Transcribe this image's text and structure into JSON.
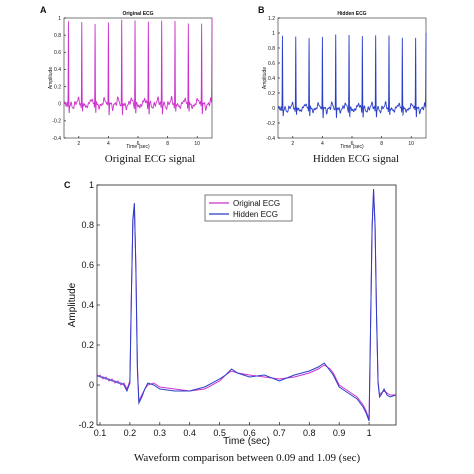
{
  "panel_labels": [
    "A",
    "B",
    "C"
  ],
  "captions": {
    "a": "Original ECG signal",
    "b": "Hidden ECG signal",
    "c": "Waveform comparison between 0.09 and 1.09 (sec)"
  },
  "colors": {
    "original": "#cc33cc",
    "hidden": "#2a3fc8"
  },
  "chart_data": [
    {
      "type": "line",
      "title": "Original ECG",
      "xlabel": "Time (sec)",
      "ylabel": "Amplitude",
      "xlim": [
        1,
        11
      ],
      "ylim": [
        -0.4,
        1.0
      ],
      "xticks": [
        "2",
        "4",
        "6",
        "8",
        "10"
      ],
      "yticks": [
        "-0.4",
        "-0.2",
        "0",
        "0.2",
        "0.4",
        "0.6",
        "0.8",
        "1"
      ],
      "grid": false,
      "series": [
        {
          "color": "#cc33cc",
          "peak_times": [
            1.3,
            2.2,
            3.1,
            4.0,
            4.9,
            5.8,
            6.7,
            7.6,
            8.5,
            9.4,
            10.3,
            11.0
          ],
          "peak_amplitude": 0.96,
          "baseline": 0.0
        }
      ]
    },
    {
      "type": "line",
      "title": "Hidden ECG",
      "xlabel": "Time (sec)",
      "ylabel": "Amplitude",
      "xlim": [
        1,
        11
      ],
      "ylim": [
        -0.4,
        1.2
      ],
      "xticks": [
        "2",
        "4",
        "6",
        "8",
        "10"
      ],
      "yticks": [
        "-0.4",
        "-0.2",
        "0",
        "0.2",
        "0.4",
        "0.6",
        "0.8",
        "1",
        "1.2"
      ],
      "grid": false,
      "series": [
        {
          "color": "#2a3fc8",
          "peak_times": [
            1.3,
            2.2,
            3.1,
            4.0,
            4.9,
            5.8,
            6.7,
            7.6,
            8.5,
            9.4,
            10.3,
            11.0
          ],
          "peak_amplitude": 0.96,
          "baseline": 0.0
        }
      ]
    },
    {
      "type": "line",
      "title": "",
      "xlabel": "Time (sec)",
      "ylabel": "Amplitude",
      "xlim": [
        0.09,
        1.09
      ],
      "ylim": [
        -0.2,
        1.0
      ],
      "xticks": [
        "0.1",
        "0.2",
        "0.3",
        "0.4",
        "0.5",
        "0.6",
        "0.7",
        "0.8",
        "0.9",
        "1"
      ],
      "yticks": [
        "-0.2",
        "0",
        "0.2",
        "0.4",
        "0.6",
        "0.8",
        "1"
      ],
      "legend": "top-center",
      "grid": false,
      "series": [
        {
          "name": "Original ECG",
          "color": "#cc33cc",
          "x": [
            0.09,
            0.1,
            0.11,
            0.12,
            0.13,
            0.14,
            0.15,
            0.16,
            0.17,
            0.18,
            0.19,
            0.2,
            0.205,
            0.21,
            0.215,
            0.22,
            0.225,
            0.23,
            0.24,
            0.25,
            0.26,
            0.28,
            0.3,
            0.35,
            0.4,
            0.45,
            0.5,
            0.52,
            0.54,
            0.56,
            0.6,
            0.65,
            0.7,
            0.75,
            0.8,
            0.83,
            0.85,
            0.87,
            0.88,
            0.89,
            0.9,
            0.92,
            0.94,
            0.96,
            0.98,
            0.99,
            1.0,
            1.005,
            1.01,
            1.015,
            1.02,
            1.025,
            1.03,
            1.035,
            1.04,
            1.05,
            1.06,
            1.07,
            1.09
          ],
          "y": [
            0.04,
            0.05,
            0.03,
            0.04,
            0.02,
            0.03,
            0.01,
            0.02,
            0.0,
            0.01,
            -0.02,
            0.02,
            0.45,
            0.82,
            0.9,
            0.6,
            0.1,
            -0.08,
            -0.05,
            -0.02,
            0.0,
            0.01,
            -0.01,
            -0.02,
            -0.03,
            -0.02,
            0.02,
            0.05,
            0.07,
            0.06,
            0.05,
            0.04,
            0.03,
            0.04,
            0.06,
            0.08,
            0.1,
            0.08,
            0.06,
            0.03,
            0.0,
            -0.02,
            -0.04,
            -0.06,
            -0.1,
            -0.13,
            -0.17,
            0.3,
            0.78,
            0.97,
            0.8,
            0.35,
            0.02,
            -0.05,
            -0.04,
            -0.03,
            -0.04,
            -0.05,
            -0.05
          ]
        },
        {
          "name": "Hidden ECG",
          "color": "#2a3fc8",
          "x": [
            0.09,
            0.1,
            0.11,
            0.12,
            0.13,
            0.14,
            0.15,
            0.16,
            0.17,
            0.18,
            0.19,
            0.2,
            0.205,
            0.21,
            0.215,
            0.22,
            0.225,
            0.23,
            0.24,
            0.25,
            0.26,
            0.28,
            0.3,
            0.35,
            0.4,
            0.45,
            0.5,
            0.52,
            0.54,
            0.56,
            0.6,
            0.65,
            0.7,
            0.75,
            0.8,
            0.83,
            0.85,
            0.87,
            0.88,
            0.89,
            0.9,
            0.92,
            0.94,
            0.96,
            0.98,
            0.99,
            1.0,
            1.005,
            1.01,
            1.015,
            1.02,
            1.025,
            1.03,
            1.035,
            1.04,
            1.05,
            1.06,
            1.07,
            1.09
          ],
          "y": [
            0.05,
            0.04,
            0.04,
            0.03,
            0.03,
            0.02,
            0.02,
            0.01,
            0.01,
            0.0,
            -0.03,
            0.01,
            0.44,
            0.83,
            0.91,
            0.58,
            0.08,
            -0.09,
            -0.06,
            -0.02,
            0.01,
            0.0,
            -0.02,
            -0.03,
            -0.03,
            -0.01,
            0.03,
            0.05,
            0.08,
            0.06,
            0.04,
            0.05,
            0.02,
            0.05,
            0.07,
            0.09,
            0.11,
            0.07,
            0.05,
            0.02,
            -0.01,
            -0.03,
            -0.05,
            -0.07,
            -0.11,
            -0.14,
            -0.18,
            0.29,
            0.79,
            0.98,
            0.79,
            0.34,
            0.01,
            -0.06,
            -0.05,
            -0.02,
            -0.05,
            -0.06,
            -0.05
          ]
        }
      ]
    }
  ]
}
